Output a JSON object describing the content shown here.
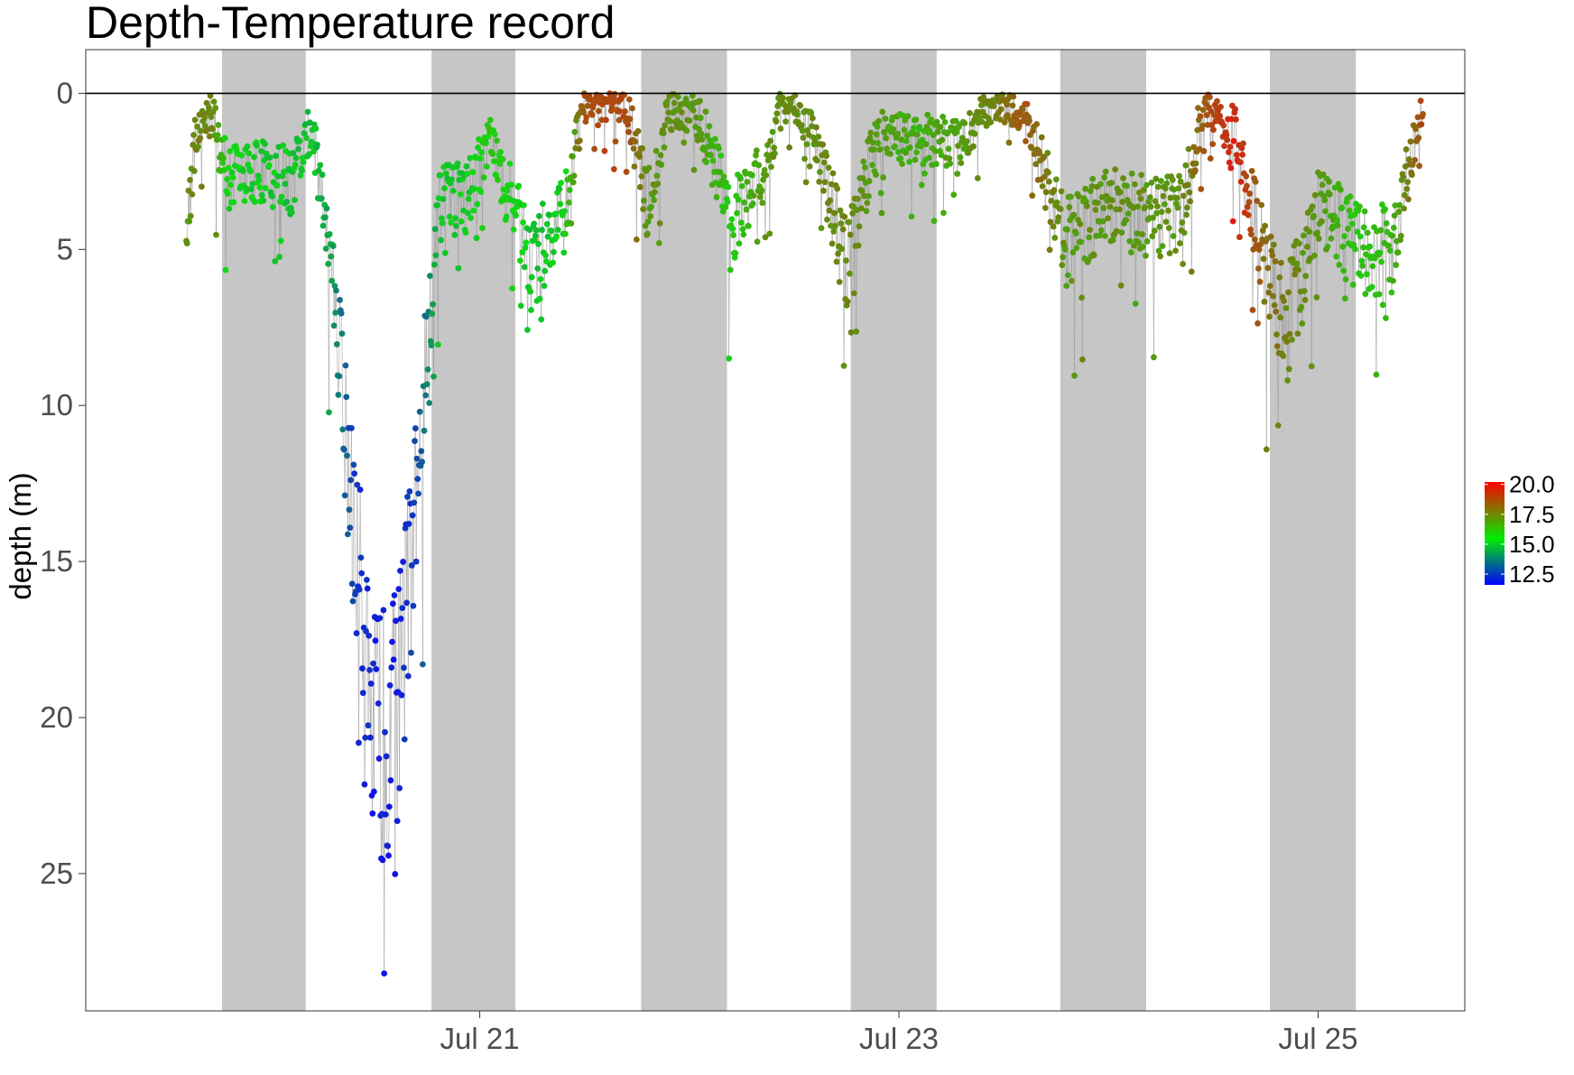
{
  "chart_data": {
    "type": "scatter",
    "title": "Depth-Temperature record",
    "ylabel": "depth (m)",
    "xlabel": "",
    "x_unit": "days since Jul 19 00:00",
    "x_range": [
      0.12,
      6.7
    ],
    "x_ticks": [
      {
        "value": 2,
        "label": "Jul 21"
      },
      {
        "value": 4,
        "label": "Jul 23"
      },
      {
        "value": 6,
        "label": "Jul 25"
      }
    ],
    "y_range": [
      -1.4,
      29.4
    ],
    "y_reversed": true,
    "y_ticks": [
      0,
      5,
      10,
      15,
      20,
      25
    ],
    "reference_line_y": 0,
    "night_bands": [
      [
        0.77,
        1.17
      ],
      [
        1.77,
        2.17
      ],
      [
        2.77,
        3.18
      ],
      [
        3.77,
        4.18
      ],
      [
        4.77,
        5.18
      ],
      [
        5.77,
        6.18
      ]
    ],
    "legend": {
      "position": "right",
      "labels": [
        "20.0",
        "17.5",
        "15.0",
        "12.5"
      ],
      "values": [
        20.0,
        17.5,
        15.0,
        12.5
      ],
      "range": [
        11.6,
        20.2
      ],
      "colors": {
        "low": "#0000ff",
        "mid": "#00ee00",
        "high": "#ff0000"
      }
    },
    "series_trend": [
      {
        "t": 0.6,
        "depth": 4.5,
        "temp": 17.0
      },
      {
        "t": 0.65,
        "depth": 1.2,
        "temp": 17.5
      },
      {
        "t": 0.72,
        "depth": 0.6,
        "temp": 17.6
      },
      {
        "t": 0.8,
        "depth": 2.8,
        "temp": 15.4
      },
      {
        "t": 0.95,
        "depth": 2.5,
        "temp": 15.2
      },
      {
        "t": 1.1,
        "depth": 2.8,
        "temp": 15.0
      },
      {
        "t": 1.2,
        "depth": 1.0,
        "temp": 15.0
      },
      {
        "t": 1.3,
        "depth": 6.0,
        "temp": 14.3
      },
      {
        "t": 1.4,
        "depth": 14.0,
        "temp": 12.4
      },
      {
        "t": 1.5,
        "depth": 21.0,
        "temp": 11.8
      },
      {
        "t": 1.6,
        "depth": 20.0,
        "temp": 11.9
      },
      {
        "t": 1.7,
        "depth": 13.0,
        "temp": 12.6
      },
      {
        "t": 1.8,
        "depth": 3.5,
        "temp": 15.0
      },
      {
        "t": 1.95,
        "depth": 3.3,
        "temp": 15.1
      },
      {
        "t": 2.05,
        "depth": 1.5,
        "temp": 16.0
      },
      {
        "t": 2.25,
        "depth": 5.5,
        "temp": 15.0
      },
      {
        "t": 2.4,
        "depth": 4.0,
        "temp": 15.3
      },
      {
        "t": 2.5,
        "depth": 0.3,
        "temp": 18.8
      },
      {
        "t": 2.7,
        "depth": 0.3,
        "temp": 19.0
      },
      {
        "t": 2.8,
        "depth": 3.5,
        "temp": 17.0
      },
      {
        "t": 2.9,
        "depth": 0.5,
        "temp": 17.3
      },
      {
        "t": 3.05,
        "depth": 0.8,
        "temp": 17.0
      },
      {
        "t": 3.2,
        "depth": 4.2,
        "temp": 15.8
      },
      {
        "t": 3.35,
        "depth": 2.5,
        "temp": 17.0
      },
      {
        "t": 3.45,
        "depth": 0.2,
        "temp": 17.4
      },
      {
        "t": 3.6,
        "depth": 1.5,
        "temp": 17.3
      },
      {
        "t": 3.75,
        "depth": 5.5,
        "temp": 17.5
      },
      {
        "t": 3.9,
        "depth": 1.2,
        "temp": 16.8
      },
      {
        "t": 4.1,
        "depth": 1.5,
        "temp": 16.5
      },
      {
        "t": 4.3,
        "depth": 1.5,
        "temp": 17.0
      },
      {
        "t": 4.45,
        "depth": 0.2,
        "temp": 17.5
      },
      {
        "t": 4.6,
        "depth": 0.5,
        "temp": 18.5
      },
      {
        "t": 4.8,
        "depth": 4.8,
        "temp": 17.0
      },
      {
        "t": 5.0,
        "depth": 3.5,
        "temp": 17.2
      },
      {
        "t": 5.2,
        "depth": 4.0,
        "temp": 17.0
      },
      {
        "t": 5.35,
        "depth": 3.8,
        "temp": 17.2
      },
      {
        "t": 5.45,
        "depth": 0.5,
        "temp": 18.5
      },
      {
        "t": 5.6,
        "depth": 1.2,
        "temp": 19.8
      },
      {
        "t": 5.75,
        "depth": 5.5,
        "temp": 18.0
      },
      {
        "t": 5.85,
        "depth": 7.5,
        "temp": 17.5
      },
      {
        "t": 6.0,
        "depth": 3.5,
        "temp": 17.0
      },
      {
        "t": 6.2,
        "depth": 5.0,
        "temp": 16.0
      },
      {
        "t": 6.35,
        "depth": 5.0,
        "temp": 16.3
      },
      {
        "t": 6.5,
        "depth": 0.2,
        "temp": 18.8
      }
    ]
  }
}
